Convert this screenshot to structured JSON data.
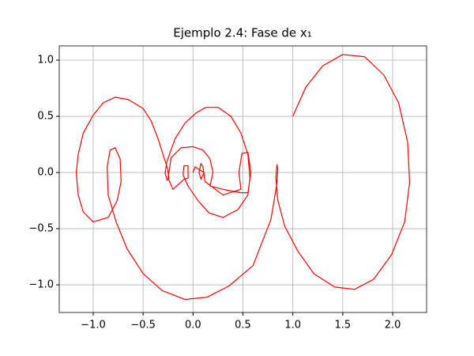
{
  "chart_data": {
    "type": "line",
    "title": "Ejemplo 2.4: Fase de x₁",
    "xlim": [
      -1.34,
      2.34
    ],
    "ylim": [
      -1.246,
      1.127
    ],
    "xticks": [
      {
        "value": -1.0,
        "label": "−1.0"
      },
      {
        "value": -0.5,
        "label": "−0.5"
      },
      {
        "value": 0.0,
        "label": "0.0"
      },
      {
        "value": 0.5,
        "label": "0.5"
      },
      {
        "value": 1.0,
        "label": "1.0"
      },
      {
        "value": 1.5,
        "label": "1.5"
      },
      {
        "value": 2.0,
        "label": "2.0"
      }
    ],
    "yticks": [
      {
        "value": -1.0,
        "label": "−1.0"
      },
      {
        "value": -0.5,
        "label": "−0.5"
      },
      {
        "value": 0.0,
        "label": "0.0"
      },
      {
        "value": 0.5,
        "label": "0.5"
      },
      {
        "value": 1.0,
        "label": "1.0"
      }
    ],
    "grid": true,
    "series": [
      {
        "color": "#ff0000",
        "x": [
          1.0,
          1.13,
          1.3,
          1.5,
          1.72,
          1.91,
          2.06,
          2.15,
          2.17,
          2.12,
          1.99,
          1.81,
          1.62,
          1.42,
          1.21,
          1.05,
          0.92,
          0.85,
          0.83,
          0.84,
          0.85,
          0.84,
          0.78,
          0.6,
          0.36,
          0.14,
          -0.08,
          -0.31,
          -0.5,
          -0.66,
          -0.77,
          -0.85,
          -0.86,
          -0.83,
          -0.78,
          -0.73,
          -0.72,
          -0.76,
          -0.85,
          -1.0,
          -1.1,
          -1.15,
          -1.17,
          -1.15,
          -1.1,
          -1.0,
          -0.9,
          -0.78,
          -0.65,
          -0.5,
          -0.42,
          -0.35,
          -0.3,
          -0.26,
          -0.24,
          -0.26,
          -0.28,
          -0.26,
          -0.18,
          -0.08,
          0.03,
          0.13,
          0.25,
          0.38,
          0.48,
          0.55,
          0.57,
          0.55,
          0.45,
          0.3,
          0.16,
          0.05,
          -0.05,
          -0.1,
          -0.09,
          -0.05,
          -0.05,
          -0.09,
          -0.2,
          -0.25,
          -0.22,
          -0.12,
          0.0,
          0.1,
          0.17,
          0.2,
          0.17,
          0.3,
          0.48,
          0.55,
          0.58,
          0.55,
          0.49,
          0.46,
          0.48,
          0.3,
          0.12,
          0.1,
          0.08,
          0.06,
          0.08,
          0.11,
          0.02,
          0.0
        ],
        "values": [
          0.5,
          0.76,
          0.95,
          1.05,
          1.03,
          0.87,
          0.62,
          0.27,
          -0.09,
          -0.44,
          -0.73,
          -0.95,
          -1.04,
          -1.02,
          -0.9,
          -0.7,
          -0.48,
          -0.25,
          -0.05,
          0.07,
          0.03,
          -0.1,
          -0.42,
          -0.83,
          -1.01,
          -1.11,
          -1.13,
          -1.05,
          -0.9,
          -0.68,
          -0.44,
          -0.2,
          0.05,
          0.2,
          0.22,
          0.12,
          -0.08,
          -0.25,
          -0.4,
          -0.44,
          -0.35,
          -0.2,
          0.0,
          0.16,
          0.35,
          0.51,
          0.62,
          0.67,
          0.65,
          0.57,
          0.46,
          0.3,
          0.16,
          0.05,
          -0.05,
          -0.07,
          0.0,
          0.1,
          0.3,
          0.44,
          0.53,
          0.58,
          0.58,
          0.5,
          0.35,
          0.16,
          -0.05,
          -0.2,
          -0.33,
          -0.4,
          -0.36,
          -0.25,
          -0.12,
          -0.02,
          0.06,
          0.06,
          -0.05,
          -0.06,
          -0.15,
          -0.05,
          0.13,
          0.22,
          0.23,
          0.2,
          0.12,
          0.0,
          -0.12,
          -0.15,
          -0.18,
          -0.18,
          0.0,
          0.18,
          0.17,
          0.0,
          -0.15,
          -0.2,
          -0.08,
          0.05,
          0.08,
          0.0,
          -0.06,
          0.0,
          0.05,
          0.0
        ]
      }
    ]
  }
}
